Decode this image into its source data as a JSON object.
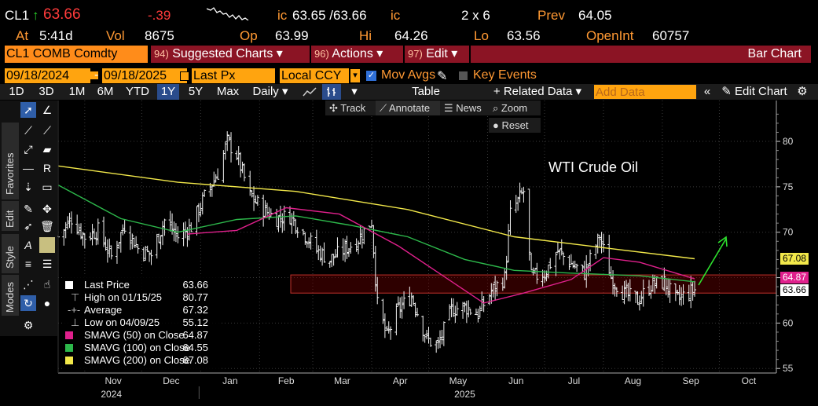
{
  "quote": {
    "ticker": "CL1",
    "arrow": "↑",
    "last": "63.66",
    "change": "-.39",
    "ic_label": "ic",
    "bid_ask": "63.65 /63.66",
    "ic_label2": "ic",
    "size": "2 x 6",
    "prev_label": "Prev",
    "prev": "64.05",
    "at_label": "At",
    "time": "5:41d",
    "vol_label": "Vol",
    "vol": "8675",
    "op_label": "Op",
    "open": "63.99",
    "hi_label": "Hi",
    "high": "64.26",
    "lo_label": "Lo",
    "low": "63.56",
    "oi_label": "OpenInt",
    "oi": "60757"
  },
  "toolbar": {
    "security": "CL1 COMB Comdty",
    "suggested_num": "94)",
    "suggested": "Suggested Charts ▾",
    "actions_num": "96)",
    "actions": "Actions ▾",
    "edit_num": "97)",
    "edit": "Edit ▾",
    "chart_type": "Bar Chart"
  },
  "range": {
    "start": "09/18/2024",
    "sep": "-",
    "end": "09/18/2025",
    "field": "Last Px",
    "currency": "Local CCY",
    "mov_avgs": "Mov Avgs",
    "key_events": "Key Events"
  },
  "timeframes": [
    "1D",
    "3D",
    "1M",
    "6M",
    "YTD",
    "1Y",
    "5Y",
    "Max"
  ],
  "selected_timeframe": "1Y",
  "period": "Daily ▾",
  "table_label": "Table",
  "related_data": "+ Related Data ▾",
  "add_data_placeholder": "Add Data",
  "edit_chart": "Edit Chart",
  "subtools": {
    "track": "Track",
    "annotate": "Annotate",
    "news": "News",
    "zoom": "Zoom",
    "reset": "Reset"
  },
  "side_tabs": [
    "Favorites",
    "Edit",
    "Style",
    "Modes"
  ],
  "annotation_text": "WTI Crude Oil",
  "legend": [
    {
      "name": "Last Price",
      "value": "63.66",
      "color": "#ffffff"
    },
    {
      "name": "High on 01/15/25",
      "value": "80.77",
      "color": "#cccccc"
    },
    {
      "name": "Average",
      "value": "67.32",
      "color": "#cccccc"
    },
    {
      "name": "Low on 04/09/25",
      "value": "55.12",
      "color": "#cccccc"
    },
    {
      "name": "SMAVG (50)  on Close",
      "value": "64.87",
      "color": "#e0208c"
    },
    {
      "name": "SMAVG (100)  on Close",
      "value": "64.55",
      "color": "#2db84b"
    },
    {
      "name": "SMAVG (200)  on Close",
      "value": "67.08",
      "color": "#f2e84a"
    }
  ],
  "price_tags": {
    "sma200": "67.08",
    "sma50": "64.87",
    "last": "63.66"
  },
  "chart_data": {
    "type": "bar",
    "title": "WTI Crude Oil",
    "y_ticks": [
      55,
      60,
      65,
      70,
      75,
      80
    ],
    "ylim": [
      54.5,
      84.5
    ],
    "x_month_labels": [
      "Nov",
      "Dec",
      "Jan",
      "Feb",
      "Mar",
      "Apr",
      "May",
      "Jun",
      "Jul",
      "Aug",
      "Sep",
      "Oct"
    ],
    "x_year_labels": [
      "2024",
      "2025"
    ],
    "x_start": "2024-10-18",
    "x_end": "2025-10-31",
    "price_path": [
      [
        "2024-10-18",
        69.5
      ],
      [
        "2024-10-25",
        71.5
      ],
      [
        "2024-11-01",
        69.5
      ],
      [
        "2024-11-08",
        70.2
      ],
      [
        "2024-11-15",
        67.3
      ],
      [
        "2024-11-22",
        70.8
      ],
      [
        "2024-11-29",
        68.2
      ],
      [
        "2024-12-06",
        67.5
      ],
      [
        "2024-12-13",
        71.3
      ],
      [
        "2024-12-20",
        69.5
      ],
      [
        "2024-12-27",
        70.6
      ],
      [
        "2025-01-03",
        73.9
      ],
      [
        "2025-01-10",
        76.5
      ],
      [
        "2025-01-15",
        80.0
      ],
      [
        "2025-01-20",
        78.5
      ],
      [
        "2025-01-27",
        74.0
      ],
      [
        "2025-02-03",
        72.5
      ],
      [
        "2025-02-10",
        71.5
      ],
      [
        "2025-02-17",
        71.8
      ],
      [
        "2025-02-24",
        70.0
      ],
      [
        "2025-03-03",
        68.0
      ],
      [
        "2025-03-10",
        67.0
      ],
      [
        "2025-03-17",
        68.0
      ],
      [
        "2025-03-24",
        69.0
      ],
      [
        "2025-04-01",
        71.2
      ],
      [
        "2025-04-04",
        62.0
      ],
      [
        "2025-04-09",
        58.5
      ],
      [
        "2025-04-15",
        61.5
      ],
      [
        "2025-04-22",
        63.0
      ],
      [
        "2025-04-30",
        58.2
      ],
      [
        "2025-05-06",
        57.5
      ],
      [
        "2025-05-13",
        61.5
      ],
      [
        "2025-05-20",
        61.8
      ],
      [
        "2025-05-27",
        61.0
      ],
      [
        "2025-06-03",
        63.5
      ],
      [
        "2025-06-10",
        65.0
      ],
      [
        "2025-06-13",
        72.0
      ],
      [
        "2025-06-20",
        74.5
      ],
      [
        "2025-06-24",
        65.0
      ],
      [
        "2025-07-01",
        65.5
      ],
      [
        "2025-07-08",
        67.9
      ],
      [
        "2025-07-15",
        66.5
      ],
      [
        "2025-07-22",
        65.5
      ],
      [
        "2025-07-30",
        69.5
      ],
      [
        "2025-08-05",
        65.0
      ],
      [
        "2025-08-12",
        63.2
      ],
      [
        "2025-08-19",
        62.5
      ],
      [
        "2025-08-26",
        64.2
      ],
      [
        "2025-09-02",
        64.5
      ],
      [
        "2025-09-08",
        62.5
      ],
      [
        "2025-09-12",
        63.0
      ],
      [
        "2025-09-18",
        63.66
      ]
    ],
    "sma200": [
      [
        "2024-10-18",
        77.3
      ],
      [
        "2024-12-20",
        75.5
      ],
      [
        "2025-02-20",
        74.5
      ],
      [
        "2025-04-20",
        72.5
      ],
      [
        "2025-06-15",
        69.5
      ],
      [
        "2025-08-01",
        68.3
      ],
      [
        "2025-09-18",
        67.08
      ]
    ],
    "sma100": [
      [
        "2024-10-18",
        75.2
      ],
      [
        "2024-11-20",
        71.5
      ],
      [
        "2024-12-20",
        70.0
      ],
      [
        "2025-01-20",
        71.4
      ],
      [
        "2025-02-20",
        71.8
      ],
      [
        "2025-03-20",
        70.8
      ],
      [
        "2025-04-20",
        69.5
      ],
      [
        "2025-05-20",
        67.0
      ],
      [
        "2025-06-15",
        65.8
      ],
      [
        "2025-07-15",
        65.5
      ],
      [
        "2025-08-20",
        65.2
      ],
      [
        "2025-09-18",
        64.55
      ]
    ],
    "sma50": [
      [
        "2024-12-25",
        69.8
      ],
      [
        "2025-01-20",
        70.2
      ],
      [
        "2025-02-15",
        72.7
      ],
      [
        "2025-03-15",
        72.0
      ],
      [
        "2025-04-15",
        68.5
      ],
      [
        "2025-05-10",
        65.0
      ],
      [
        "2025-05-30",
        62.2
      ],
      [
        "2025-06-20",
        63.3
      ],
      [
        "2025-07-15",
        64.8
      ],
      [
        "2025-08-01",
        67.2
      ],
      [
        "2025-08-20",
        66.7
      ],
      [
        "2025-09-18",
        64.87
      ]
    ],
    "zone": [
      63.3,
      65.3
    ]
  }
}
